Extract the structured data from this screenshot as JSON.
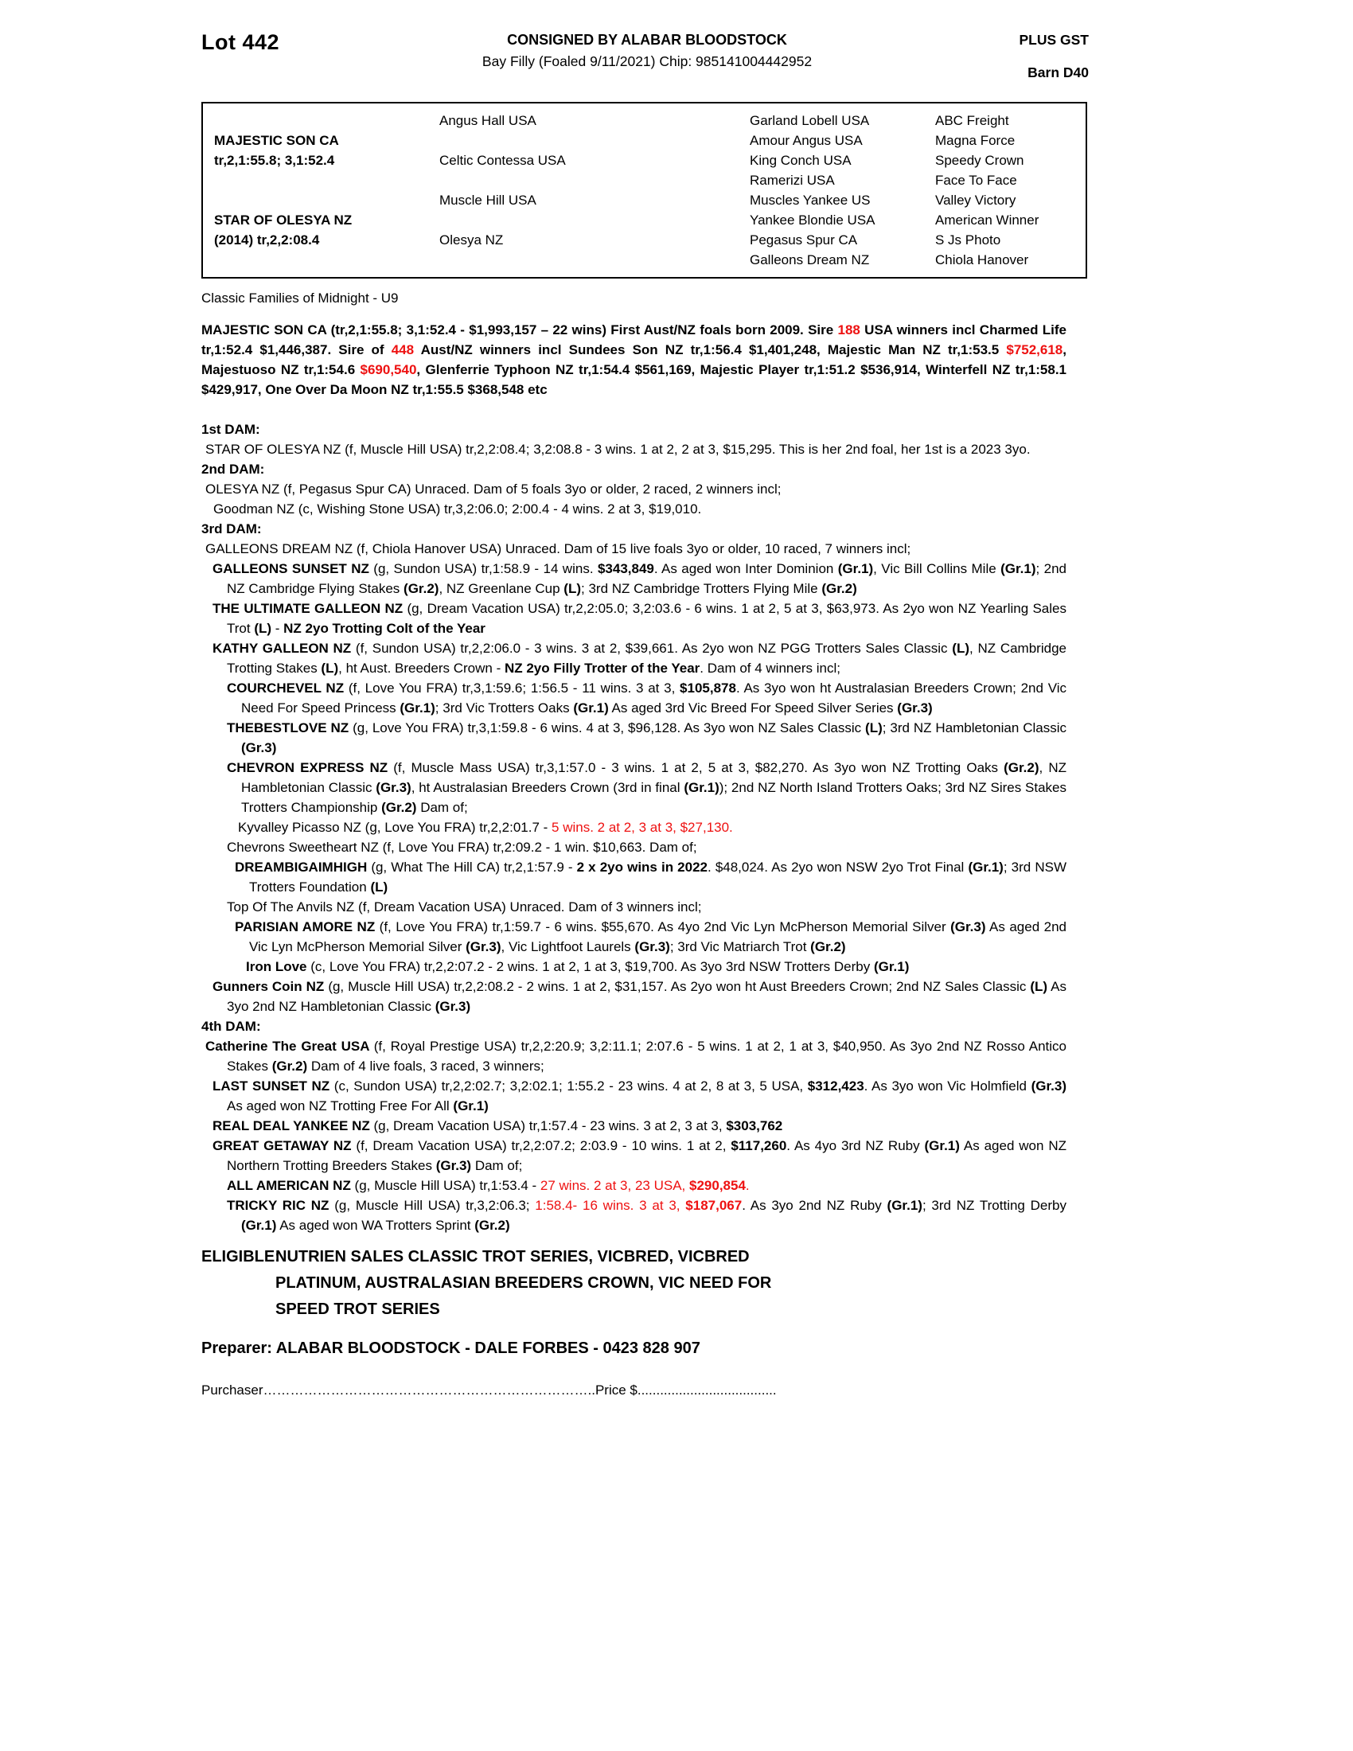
{
  "colors": {
    "red_highlight": "#ee1111",
    "ink": "#000000"
  },
  "header": {
    "lot": "Lot 442",
    "consigned": "CONSIGNED BY ALABAR BLOODSTOCK",
    "foal_info": "Bay Filly (Foaled 9/11/2021) Chip: 985141004442952",
    "plus_gst": "PLUS GST",
    "barn": "Barn D40"
  },
  "pedigree": {
    "rows": [
      [
        "",
        "Angus Hall USA",
        "Garland Lobell USA",
        "ABC Freight"
      ],
      [
        "MAJESTIC SON CA",
        "",
        "Amour Angus USA",
        "Magna Force"
      ],
      [
        "tr,2,1:55.8; 3,1:52.4",
        "Celtic Contessa USA",
        "King Conch USA",
        "Speedy Crown"
      ],
      [
        "",
        "",
        "Ramerizi USA",
        "Face To Face"
      ],
      [
        "",
        "Muscle Hill USA",
        "Muscles Yankee US",
        "Valley Victory"
      ],
      [
        "STAR OF OLESYA NZ",
        "",
        "Yankee Blondie USA",
        "American Winner"
      ],
      [
        "(2014) tr,2,2:08.4",
        "Olesya NZ",
        "Pegasus Spur CA",
        "S Js Photo"
      ],
      [
        "",
        "",
        "Galleons Dream NZ",
        "Chiola Hanover"
      ]
    ]
  },
  "family_note": "Classic Families of Midnight - U9",
  "sire_para": {
    "seg": [
      {
        "t": "MAJESTIC SON CA (tr,2,1:55.8; 3,1:52.4 - $1,993,157 – 22 wins) First Aust/NZ foals born 2009. Sire ",
        "b": true
      },
      {
        "t": "188",
        "b": true,
        "r": true
      },
      {
        "t": " USA winners incl Charmed Life tr,1:52.4 $1,446,387. Sire of ",
        "b": true
      },
      {
        "t": "448",
        "b": true,
        "r": true
      },
      {
        "t": " Aust/NZ winners incl Sundees Son NZ tr,1:56.4 $1,401,248, Majestic Man NZ tr,1:53.5 ",
        "b": true
      },
      {
        "t": "$752,618",
        "b": true,
        "r": true
      },
      {
        "t": ", Majestuoso NZ tr,1:54.6 ",
        "b": true
      },
      {
        "t": "$690,540",
        "b": true,
        "r": true
      },
      {
        "t": ", Glenferrie Typhoon NZ tr,1:54.4 $561,169, Majestic Player tr,1:51.2 $536,914, Winterfell NZ tr,1:58.1 $429,917, One Over Da Moon NZ tr,1:55.5 $368,548 etc",
        "b": true
      }
    ]
  },
  "paragraphs": [
    {
      "n": "dam1-heading",
      "f": 0,
      "c": 0,
      "seg": [
        {
          "t": "1st DAM:",
          "b": true
        }
      ]
    },
    {
      "n": "dam1-star-of-olesya",
      "f": 5,
      "c": 32,
      "j": true,
      "seg": [
        {
          "t": "STAR OF OLESYA NZ (f, Muscle Hill USA) tr,2,2:08.4; 3,2:08.8 - 3 wins. 1 at 2, 2 at 3, $15,295. This is her 2nd foal, her 1st is a 2023 3yo."
        }
      ]
    },
    {
      "n": "dam2-heading",
      "f": 0,
      "c": 0,
      "seg": [
        {
          "t": "2nd DAM:",
          "b": true
        }
      ]
    },
    {
      "n": "dam2-olesya",
      "f": 5,
      "c": 20,
      "seg": [
        {
          "t": "OLESYA NZ (f, Pegasus Spur CA) Unraced. Dam of 5 foals 3yo or older, 2 raced, 2 winners incl;"
        }
      ]
    },
    {
      "n": "dam2-goodman",
      "f": 15,
      "c": 32,
      "seg": [
        {
          "t": "Goodman NZ (c, Wishing Stone USA) tr,3,2:06.0; 2:00.4 - 4 wins. 2 at 3, $19,010."
        }
      ]
    },
    {
      "n": "dam3-heading",
      "f": 0,
      "c": 0,
      "seg": [
        {
          "t": "3rd DAM:",
          "b": true
        }
      ]
    },
    {
      "n": "dam3-galleons-dream",
      "f": 5,
      "c": 32,
      "j": true,
      "seg": [
        {
          "t": "GALLEONS DREAM NZ (f, Chiola Hanover USA) Unraced. Dam of 15 live foals 3yo or older, 10 raced, 7 winners incl;"
        }
      ]
    },
    {
      "n": "entry-galleons-sunset",
      "f": 14,
      "c": 32,
      "j": true,
      "seg": [
        {
          "t": "GALLEONS SUNSET NZ ",
          "b": true
        },
        {
          "t": "(g, Sundon USA) tr,1:58.9 - 14 wins. "
        },
        {
          "t": "$343,849",
          "b": true
        },
        {
          "t": ". As aged won Inter Dominion "
        },
        {
          "t": "(Gr.1)",
          "b": true
        },
        {
          "t": ", Vic Bill Collins Mile "
        },
        {
          "t": "(Gr.1)",
          "b": true
        },
        {
          "t": "; 2nd NZ Cambridge Flying Stakes "
        },
        {
          "t": "(Gr.2)",
          "b": true
        },
        {
          "t": ", NZ Greenlane Cup "
        },
        {
          "t": "(L)",
          "b": true
        },
        {
          "t": "; 3rd NZ Cambridge Trotters Flying Mile "
        },
        {
          "t": "(Gr.2)",
          "b": true
        }
      ]
    },
    {
      "n": "entry-the-ultimate-galleon",
      "f": 14,
      "c": 32,
      "j": true,
      "seg": [
        {
          "t": "THE ULTIMATE GALLEON NZ ",
          "b": true
        },
        {
          "t": "(g, Dream Vacation USA) tr,2,2:05.0; 3,2:03.6 - 6 wins. 1 at 2, 5 at 3, $63,973. As 2yo won NZ Yearling Sales Trot "
        },
        {
          "t": "(L)",
          "b": true
        },
        {
          "t": " - "
        },
        {
          "t": "NZ 2yo Trotting Colt of the Year",
          "b": true
        }
      ]
    },
    {
      "n": "entry-kathy-galleon",
      "f": 14,
      "c": 32,
      "j": true,
      "seg": [
        {
          "t": "KATHY GALLEON NZ ",
          "b": true
        },
        {
          "t": "(f, Sundon USA) tr,2,2:06.0 - 3 wins. 3 at 2, $39,661. As 2yo won NZ PGG Trotters Sales Classic "
        },
        {
          "t": "(L)",
          "b": true
        },
        {
          "t": ", NZ Cambridge Trotting Stakes "
        },
        {
          "t": "(L)",
          "b": true
        },
        {
          "t": ", ht Aust. Breeders Crown - "
        },
        {
          "t": "NZ 2yo Filly Trotter of the Year",
          "b": true
        },
        {
          "t": ". Dam of 4 winners incl;"
        }
      ]
    },
    {
      "n": "entry-courchevel",
      "f": 32,
      "c": 50,
      "j": true,
      "seg": [
        {
          "t": "COURCHEVEL NZ ",
          "b": true
        },
        {
          "t": "(f, Love You FRA) tr,3,1:59.6; 1:56.5 - 11 wins. 3 at 3, "
        },
        {
          "t": "$105,878",
          "b": true
        },
        {
          "t": ". As 3yo won ht Australasian Breeders Crown; 2nd Vic Need For Speed Princess "
        },
        {
          "t": "(Gr.1)",
          "b": true
        },
        {
          "t": "; 3rd Vic Trotters Oaks "
        },
        {
          "t": "(Gr.1)",
          "b": true
        },
        {
          "t": " As aged 3rd Vic Breed For Speed Silver Series "
        },
        {
          "t": "(Gr.3)",
          "b": true
        }
      ]
    },
    {
      "n": "entry-thebestlove",
      "f": 32,
      "c": 50,
      "j": true,
      "seg": [
        {
          "t": "THEBESTLOVE NZ ",
          "b": true
        },
        {
          "t": "(g, Love You FRA) tr,3,1:59.8 - 6 wins. 4 at 3, $96,128. As 3yo won NZ Sales Classic "
        },
        {
          "t": "(L)",
          "b": true
        },
        {
          "t": "; 3rd NZ Hambletonian Classic "
        },
        {
          "t": "(Gr.3)",
          "b": true
        }
      ]
    },
    {
      "n": "entry-chevron-express",
      "f": 32,
      "c": 50,
      "j": true,
      "seg": [
        {
          "t": "CHEVRON EXPRESS NZ ",
          "b": true
        },
        {
          "t": "(f, Muscle Mass USA) tr,3,1:57.0 - 3 wins. 1 at 2, 5 at 3, $82,270. As 3yo won NZ Trotting Oaks "
        },
        {
          "t": "(Gr.2)",
          "b": true
        },
        {
          "t": ", NZ Hambletonian Classic "
        },
        {
          "t": "(Gr.3)",
          "b": true
        },
        {
          "t": ", ht Australasian Breeders Crown (3rd in final "
        },
        {
          "t": "(Gr.1)",
          "b": true
        },
        {
          "t": "); 2nd NZ North Island Trotters Oaks; 3rd NZ Sires Stakes Trotters Championship "
        },
        {
          "t": "(Gr.2)",
          "b": true
        },
        {
          "t": " Dam of;"
        }
      ]
    },
    {
      "n": "entry-kyvalley-picasso",
      "f": 46,
      "c": 46,
      "seg": [
        {
          "t": "Kyvalley Picasso NZ (g, Love You FRA) tr,2,2:01.7 - "
        },
        {
          "t": "5 wins. 2 at 2, 3 at 3, $27,130.",
          "r": true
        }
      ]
    },
    {
      "n": "entry-chevrons-sweetheart",
      "f": 32,
      "c": 32,
      "seg": [
        {
          "t": "Chevrons Sweetheart NZ (f, Love You FRA) tr,2:09.2 - 1 win. $10,663. Dam of;"
        }
      ]
    },
    {
      "n": "entry-dreambigaimhigh",
      "f": 42,
      "c": 60,
      "j": true,
      "seg": [
        {
          "t": "DREAMBIGAIMHIGH ",
          "b": true
        },
        {
          "t": "(g, What The Hill CA) tr,2,1:57.9 - "
        },
        {
          "t": "2 x 2yo wins in 2022",
          "b": true
        },
        {
          "t": ". $48,024. As 2yo won NSW 2yo Trot Final "
        },
        {
          "t": "(Gr.1)",
          "b": true
        },
        {
          "t": "; 3rd NSW Trotters Foundation "
        },
        {
          "t": "(L)",
          "b": true
        }
      ]
    },
    {
      "n": "entry-top-of-the-anvils",
      "f": 32,
      "c": 32,
      "seg": [
        {
          "t": "Top Of The Anvils NZ (f, Dream Vacation USA) Unraced. Dam of 3 winners incl;"
        }
      ]
    },
    {
      "n": "entry-parisian-amore",
      "f": 42,
      "c": 60,
      "j": true,
      "seg": [
        {
          "t": "PARISIAN AMORE NZ ",
          "b": true
        },
        {
          "t": "(f, Love You FRA) tr,1:59.7 - 6 wins. $55,670. As 4yo 2nd Vic Lyn McPherson Memorial Silver "
        },
        {
          "t": "(Gr.3)",
          "b": true
        },
        {
          "t": " As aged 2nd Vic Lyn McPherson Memorial Silver "
        },
        {
          "t": "(Gr.3)",
          "b": true
        },
        {
          "t": ", Vic Lightfoot Laurels "
        },
        {
          "t": "(Gr.3)",
          "b": true
        },
        {
          "t": "; 3rd Vic Matriarch Trot "
        },
        {
          "t": "(Gr.2)",
          "b": true
        }
      ]
    },
    {
      "n": "entry-iron-love",
      "f": 56,
      "c": 74,
      "seg": [
        {
          "t": "Iron Love ",
          "b": true
        },
        {
          "t": "(c, Love You FRA) tr,2,2:07.2 - 2 wins. 1 at 2, 1 at 3, $19,700. As 3yo 3rd NSW Trotters Derby "
        },
        {
          "t": "(Gr.1)",
          "b": true
        }
      ]
    },
    {
      "n": "entry-gunners-coin",
      "f": 14,
      "c": 32,
      "j": true,
      "seg": [
        {
          "t": "Gunners Coin NZ ",
          "b": true
        },
        {
          "t": "(g, Muscle Hill USA) tr,2,2:08.2 - 2 wins. 1 at 2, $31,157. As 2yo won ht Aust Breeders Crown; 2nd NZ Sales Classic "
        },
        {
          "t": "(L)",
          "b": true
        },
        {
          "t": " As 3yo 2nd NZ Hambletonian Classic "
        },
        {
          "t": "(Gr.3)",
          "b": true
        }
      ]
    },
    {
      "n": "dam4-heading",
      "f": 0,
      "c": 0,
      "seg": [
        {
          "t": "4th DAM:",
          "b": true
        }
      ]
    },
    {
      "n": "dam4-catherine-the-great",
      "f": 5,
      "c": 32,
      "j": true,
      "seg": [
        {
          "t": "Catherine The Great USA ",
          "b": true
        },
        {
          "t": "(f, Royal Prestige USA) tr,2,2:20.9; 3,2:11.1; 2:07.6 - 5 wins. 1 at 2, 1 at 3, $40,950. As 3yo 2nd NZ Rosso Antico Stakes "
        },
        {
          "t": "(Gr.2)",
          "b": true
        },
        {
          "t": " Dam of 4 live foals, 3 raced, 3 winners;"
        }
      ]
    },
    {
      "n": "entry-last-sunset",
      "f": 14,
      "c": 32,
      "j": true,
      "seg": [
        {
          "t": "LAST SUNSET NZ ",
          "b": true
        },
        {
          "t": "(c, Sundon USA) tr,2,2:02.7; 3,2:02.1; 1:55.2 - 23 wins. 4 at 2, 8 at 3, 5 USA, "
        },
        {
          "t": "$312,423",
          "b": true
        },
        {
          "t": ". As 3yo won Vic Holmfield "
        },
        {
          "t": "(Gr.3)",
          "b": true
        },
        {
          "t": " As aged won NZ Trotting Free For All "
        },
        {
          "t": "(Gr.1)",
          "b": true
        }
      ]
    },
    {
      "n": "entry-real-deal-yankee",
      "f": 14,
      "c": 32,
      "seg": [
        {
          "t": "REAL DEAL YANKEE NZ ",
          "b": true
        },
        {
          "t": "(g, Dream Vacation USA) tr,1:57.4 - 23 wins. 3 at 2, 3 at 3, "
        },
        {
          "t": "$303,762",
          "b": true
        }
      ]
    },
    {
      "n": "entry-great-getaway",
      "f": 14,
      "c": 32,
      "j": true,
      "seg": [
        {
          "t": "GREAT GETAWAY NZ ",
          "b": true
        },
        {
          "t": "(f, Dream Vacation USA) tr,2,2:07.2; 2:03.9 - 10 wins. 1 at 2, "
        },
        {
          "t": "$117,260",
          "b": true
        },
        {
          "t": ". As 4yo 3rd NZ Ruby "
        },
        {
          "t": "(Gr.1)",
          "b": true
        },
        {
          "t": " As aged won NZ Northern Trotting Breeders Stakes "
        },
        {
          "t": "(Gr.3)",
          "b": true
        },
        {
          "t": " Dam of;"
        }
      ]
    },
    {
      "n": "entry-all-american",
      "f": 32,
      "c": 50,
      "seg": [
        {
          "t": "ALL AMERICAN NZ ",
          "b": true
        },
        {
          "t": "(g, Muscle Hill USA) tr,1:53.4 - "
        },
        {
          "t": "27 wins. 2 at 3, 23 USA, ",
          "r": true
        },
        {
          "t": "$290,854",
          "b": true,
          "r": true
        },
        {
          "t": ".",
          "r": true
        }
      ]
    },
    {
      "n": "entry-tricky-ric",
      "f": 32,
      "c": 50,
      "j": true,
      "seg": [
        {
          "t": "TRICKY RIC NZ ",
          "b": true
        },
        {
          "t": "(g, Muscle Hill USA) tr,3,2:06.3; "
        },
        {
          "t": "1:58.4- 16 wins. 3 at 3, ",
          "r": true
        },
        {
          "t": "$187,067",
          "b": true,
          "r": true
        },
        {
          "t": ". As 3yo 2nd NZ Ruby "
        },
        {
          "t": "(Gr.1)",
          "b": true
        },
        {
          "t": "; 3rd NZ Trotting Derby "
        },
        {
          "t": "(Gr.1)",
          "b": true
        },
        {
          "t": " As aged won WA Trotters Sprint "
        },
        {
          "t": "(Gr.2)",
          "b": true
        }
      ]
    }
  ],
  "eligible": {
    "label": "ELIGIBLE:",
    "lines": [
      "NUTRIEN SALES CLASSIC TROT SERIES, VICBRED, VICBRED",
      "PLATINUM, AUSTRALASIAN BREEDERS CROWN, VIC NEED FOR",
      "SPEED TROT SERIES"
    ]
  },
  "preparer": "Preparer: ALABAR BLOODSTOCK - DALE FORBES - 0423 828 907",
  "purchaser": {
    "label": "Purchaser",
    "leader1": "………………………………………………………………..",
    "price_label": "Price $",
    "leader2": "....................................."
  }
}
